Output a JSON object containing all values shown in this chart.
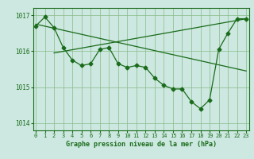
{
  "line_main": {
    "x": [
      0,
      1,
      2,
      3,
      4,
      5,
      6,
      7,
      8,
      9,
      10,
      11,
      12,
      13,
      14,
      15,
      16,
      17,
      18,
      19,
      20,
      21,
      22,
      23
    ],
    "y": [
      1016.7,
      1016.95,
      1016.65,
      1016.1,
      1015.75,
      1015.6,
      1015.65,
      1016.05,
      1016.1,
      1015.65,
      1015.55,
      1015.6,
      1015.55,
      1015.25,
      1015.05,
      1014.95,
      1014.95,
      1014.6,
      1014.4,
      1014.65,
      1016.05,
      1016.5,
      1016.9,
      1016.9
    ]
  },
  "line_straight_down": {
    "x": [
      0,
      23
    ],
    "y": [
      1016.75,
      1015.45
    ]
  },
  "line_straight_up": {
    "x": [
      2,
      23
    ],
    "y": [
      1015.95,
      1016.9
    ]
  },
  "bg_color": "#cce8e0",
  "line_color": "#1a6b1a",
  "grid_color": "#88bb88",
  "xlabel": "Graphe pression niveau de la mer (hPa)",
  "yticks": [
    1014,
    1015,
    1016,
    1017
  ],
  "xticks": [
    0,
    1,
    2,
    3,
    4,
    5,
    6,
    7,
    8,
    9,
    10,
    11,
    12,
    13,
    14,
    15,
    16,
    17,
    18,
    19,
    20,
    21,
    22,
    23
  ],
  "ylim": [
    1013.8,
    1017.2
  ],
  "xlim": [
    -0.3,
    23.3
  ]
}
